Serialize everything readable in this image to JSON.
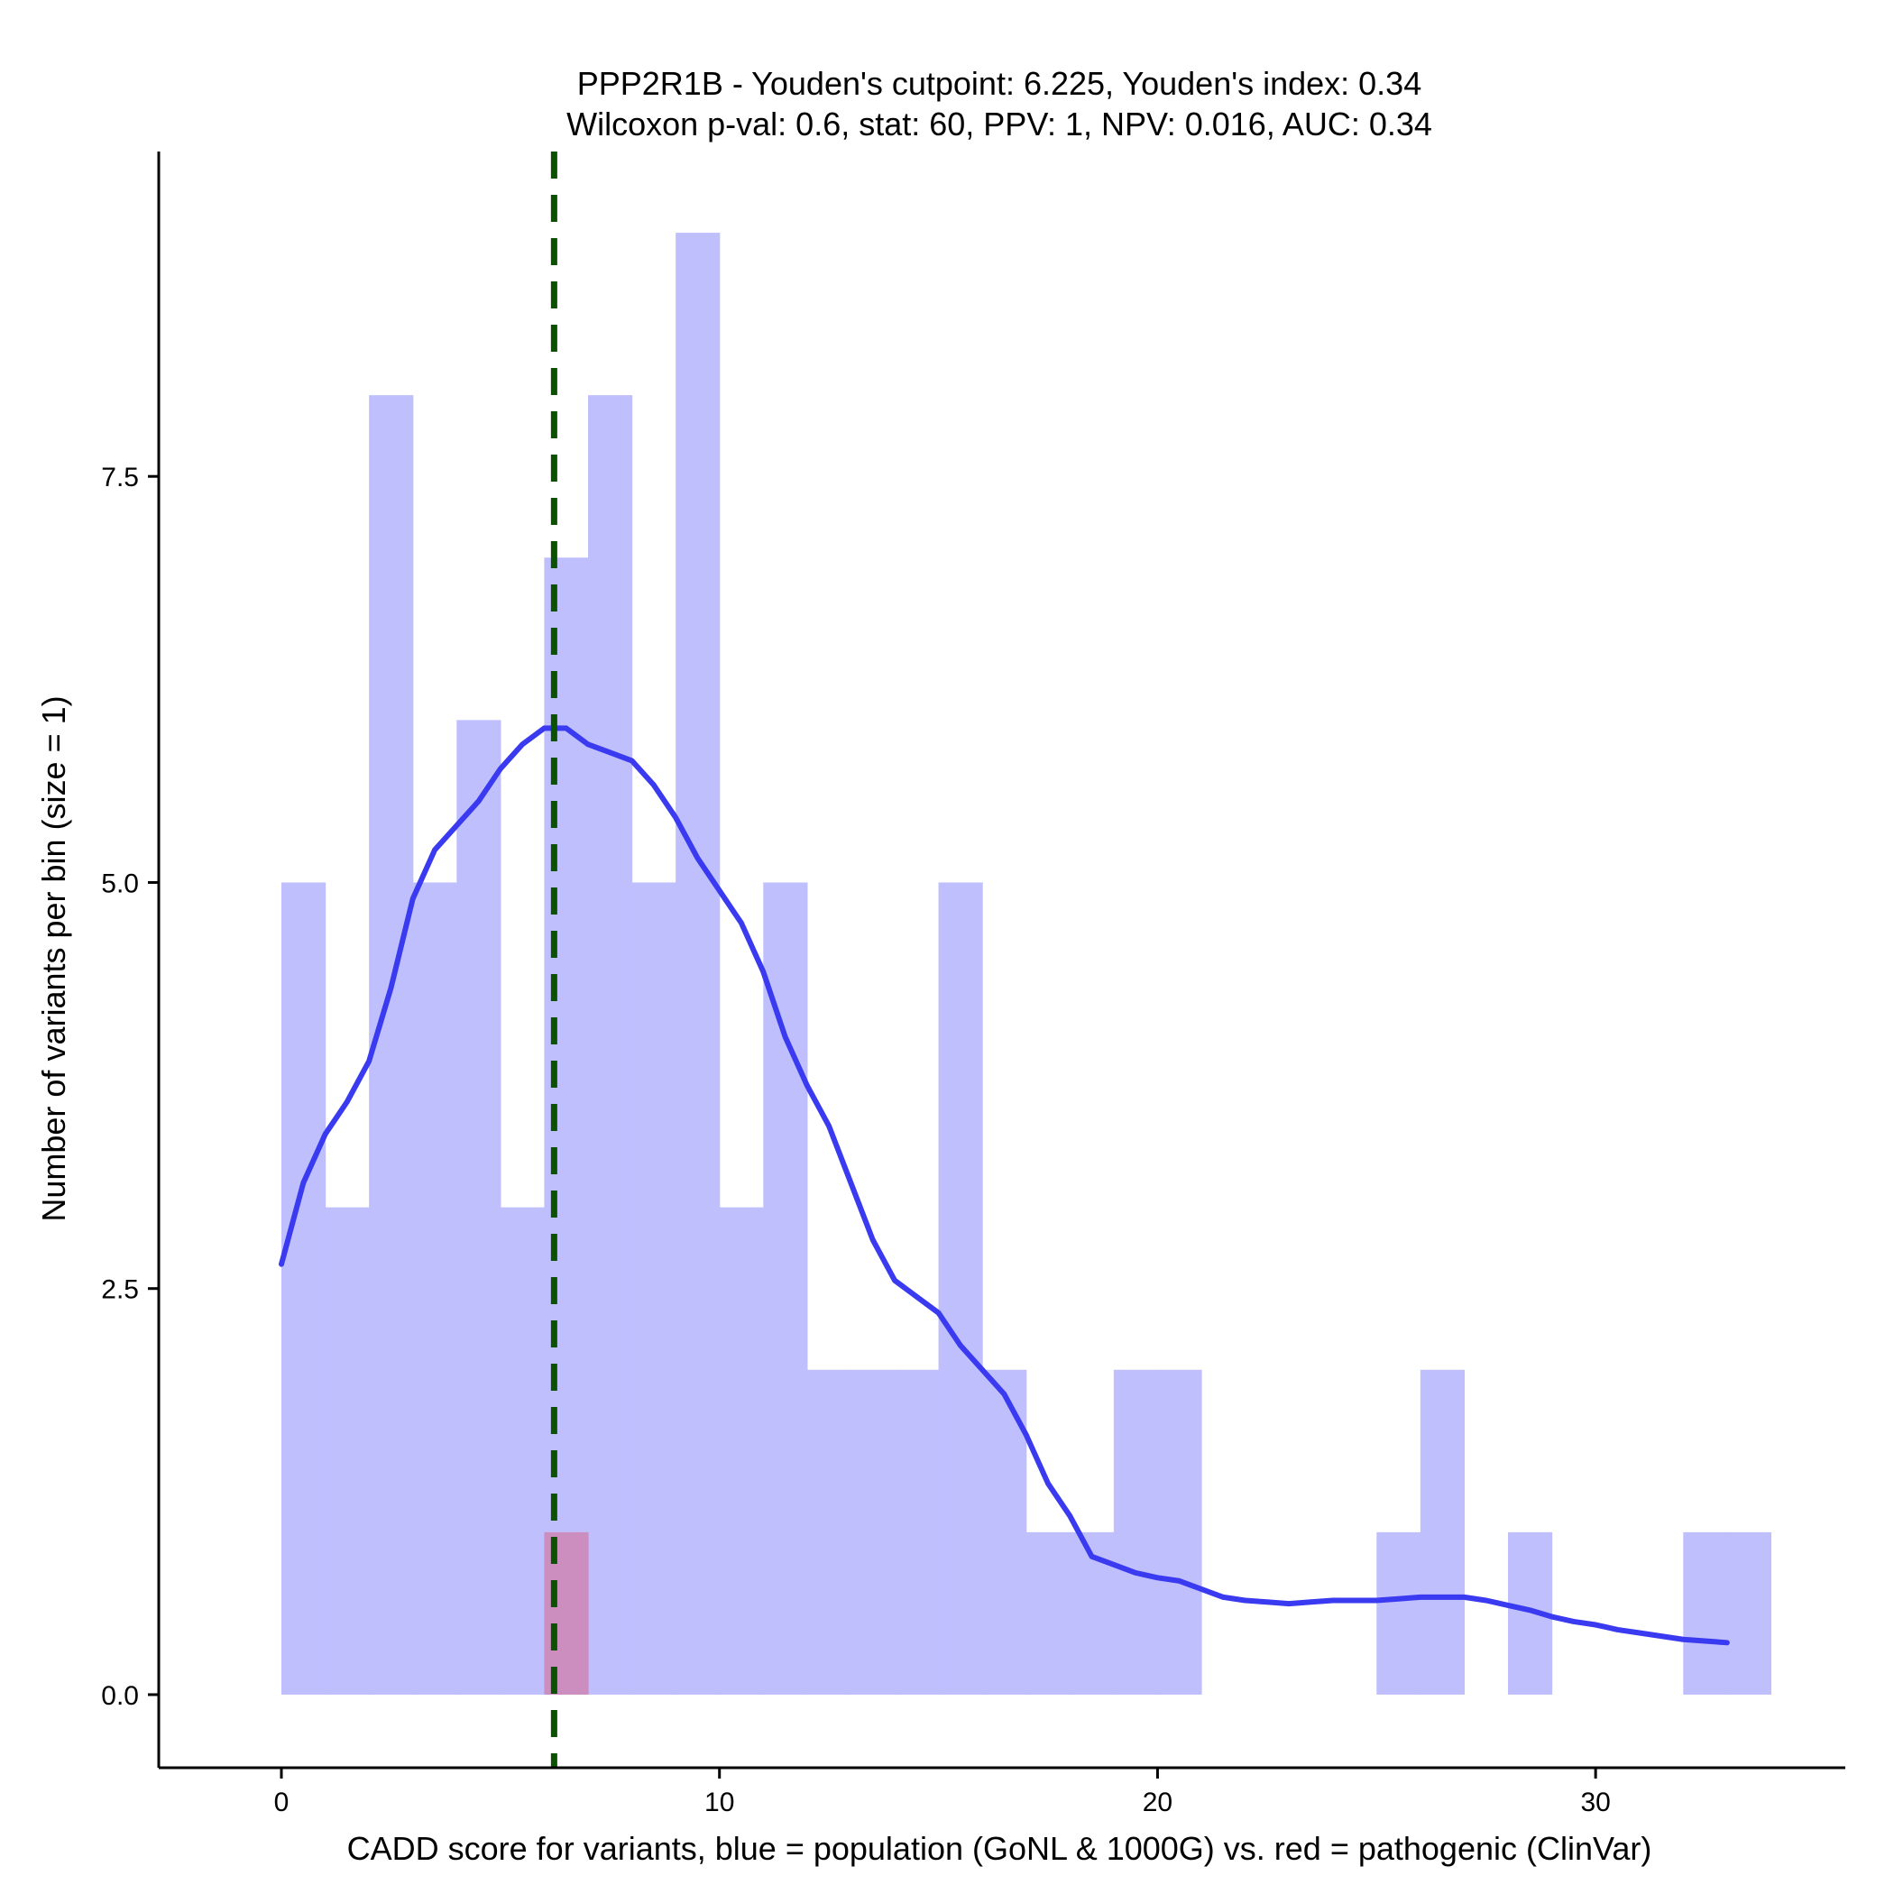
{
  "chart_data": {
    "type": "histogram",
    "title": "PPP2R1B - Youden's cutpoint: 6.225, Youden's index: 0.34",
    "subtitle": "Wilcoxon p-val: 0.6, stat: 60, PPV: 1, NPV: 0.016, AUC: 0.34",
    "xlabel": "CADD score for variants, blue = population (GoNL & 1000G) vs. red = pathogenic (ClinVar)",
    "ylabel": "Number of variants per bin (size = 1)",
    "xlim": [
      -2.8,
      35.7
    ],
    "ylim": [
      -0.45,
      9.5
    ],
    "x_ticks": [
      0,
      10,
      20,
      30
    ],
    "x_tick_labels": [
      "0",
      "10",
      "20",
      "30"
    ],
    "y_ticks": [
      0,
      2.5,
      5,
      7.5
    ],
    "y_tick_labels": [
      "0.0",
      "2.5",
      "5.0",
      "7.5"
    ],
    "bin_size": 1,
    "colors": {
      "population": "#bfbffe",
      "pathogenic": "#cc8ebf",
      "density": "#3a3af0",
      "cutpoint": "#0a5200"
    },
    "series": [
      {
        "name": "population",
        "bin_starts": [
          0,
          1,
          2,
          3,
          4,
          5,
          6,
          7,
          8,
          9,
          10,
          11,
          12,
          13,
          14,
          15,
          16,
          17,
          18,
          19,
          20,
          21,
          22,
          23,
          24,
          25,
          26,
          27,
          28,
          29,
          30,
          31,
          32,
          33
        ],
        "values": [
          5,
          3,
          8,
          5,
          6,
          3,
          7,
          8,
          5,
          9,
          3,
          5,
          2,
          2,
          2,
          5,
          2,
          1,
          1,
          2,
          2,
          0,
          0,
          0,
          0,
          1,
          2,
          0,
          1,
          0,
          0,
          0,
          1,
          1
        ]
      },
      {
        "name": "pathogenic",
        "bin_starts": [
          6
        ],
        "values": [
          1
        ]
      }
    ],
    "density_curve": {
      "x": [
        0,
        0.5,
        1,
        1.5,
        2,
        2.5,
        3,
        3.5,
        4,
        4.5,
        5,
        5.5,
        6,
        6.5,
        7,
        7.5,
        8,
        8.5,
        9,
        9.5,
        10,
        10.5,
        11,
        11.5,
        12,
        12.5,
        13,
        13.5,
        14,
        14.5,
        15,
        15.5,
        16,
        16.5,
        17,
        17.5,
        18,
        18.5,
        19,
        19.5,
        20,
        20.5,
        21,
        21.5,
        22,
        22.5,
        23,
        23.5,
        24,
        24.5,
        25,
        25.5,
        26,
        26.5,
        27,
        27.5,
        28,
        28.5,
        29,
        29.5,
        30,
        30.5,
        31,
        31.5,
        32,
        32.5,
        33
      ],
      "y": [
        2.65,
        3.15,
        3.45,
        3.65,
        3.9,
        4.35,
        4.9,
        5.2,
        5.35,
        5.5,
        5.7,
        5.85,
        5.95,
        5.95,
        5.85,
        5.8,
        5.75,
        5.6,
        5.4,
        5.15,
        4.95,
        4.75,
        4.45,
        4.05,
        3.75,
        3.5,
        3.15,
        2.8,
        2.55,
        2.45,
        2.35,
        2.15,
        2.0,
        1.85,
        1.6,
        1.3,
        1.1,
        0.85,
        0.8,
        0.75,
        0.72,
        0.7,
        0.65,
        0.6,
        0.58,
        0.57,
        0.56,
        0.57,
        0.58,
        0.58,
        0.58,
        0.59,
        0.6,
        0.6,
        0.6,
        0.58,
        0.55,
        0.52,
        0.48,
        0.45,
        0.43,
        0.4,
        0.38,
        0.36,
        0.34,
        0.33,
        0.32
      ]
    },
    "cutpoint": 6.225
  }
}
